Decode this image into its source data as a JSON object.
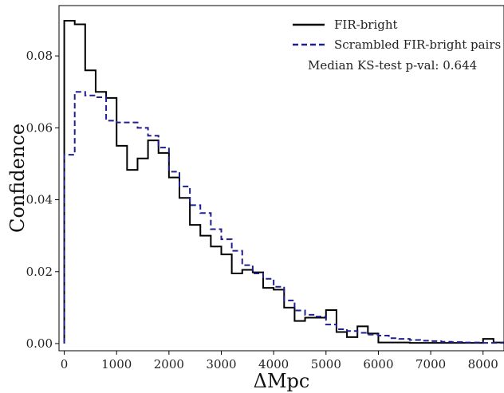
{
  "chart_data": {
    "type": "line",
    "title": "",
    "xlabel": "ΔMpc",
    "ylabel": "Confidence",
    "xlim": [
      -100,
      8400
    ],
    "ylim": [
      -0.002,
      0.094
    ],
    "xticks": [
      0,
      1000,
      2000,
      3000,
      4000,
      5000,
      6000,
      7000,
      8000
    ],
    "yticks": [
      0.0,
      0.02,
      0.04,
      0.06,
      0.08
    ],
    "xtick_labels": [
      "0",
      "1000",
      "2000",
      "3000",
      "4000",
      "5000",
      "6000",
      "7000",
      "8000"
    ],
    "ytick_labels": [
      "0.00",
      "0.02",
      "0.04",
      "0.06",
      "0.08"
    ],
    "grid": false,
    "legend_position": "top-right",
    "annotation": "Median KS-test p-val: 0.644",
    "bin_edges": [
      0,
      200,
      400,
      600,
      800,
      1000,
      1200,
      1400,
      1600,
      1800,
      2000,
      2200,
      2400,
      2600,
      2800,
      3000,
      3200,
      3400,
      3600,
      3800,
      4000,
      4200,
      4400,
      4600,
      4800,
      5000,
      5200,
      5400,
      5600,
      5800,
      6000,
      6200,
      6400,
      6600,
      6800,
      7000,
      7200,
      7400,
      7600,
      7800,
      8000,
      8200,
      8400
    ],
    "series": [
      {
        "name": "FIR-bright",
        "style": "solid",
        "color": "#000000",
        "values": [
          0.0898,
          0.0888,
          0.076,
          0.07,
          0.0683,
          0.055,
          0.0483,
          0.0515,
          0.0565,
          0.053,
          0.0462,
          0.0405,
          0.033,
          0.03,
          0.027,
          0.0248,
          0.0195,
          0.0205,
          0.0198,
          0.0155,
          0.015,
          0.01,
          0.0063,
          0.0072,
          0.0072,
          0.0093,
          0.0032,
          0.0018,
          0.0048,
          0.0028,
          0.0003,
          0.0003,
          0.0003,
          0.0002,
          0.0002,
          0.0002,
          0.0002,
          0.0002,
          0.0002,
          0.0002,
          0.0013,
          0.0003
        ]
      },
      {
        "name": "Scrambled FIR-bright pairs",
        "style": "dashed",
        "color": "#1f1f8f",
        "values": [
          0.0525,
          0.07,
          0.069,
          0.0685,
          0.062,
          0.0615,
          0.0615,
          0.06,
          0.0578,
          0.0545,
          0.0478,
          0.0437,
          0.0385,
          0.0363,
          0.0318,
          0.029,
          0.0258,
          0.0218,
          0.0195,
          0.018,
          0.0158,
          0.012,
          0.0092,
          0.008,
          0.0075,
          0.0053,
          0.004,
          0.0035,
          0.003,
          0.0025,
          0.0022,
          0.0015,
          0.0013,
          0.001,
          0.0008,
          0.0007,
          0.0005,
          0.0004,
          0.0003,
          0.0003,
          0.0002,
          0.0002
        ]
      }
    ]
  }
}
